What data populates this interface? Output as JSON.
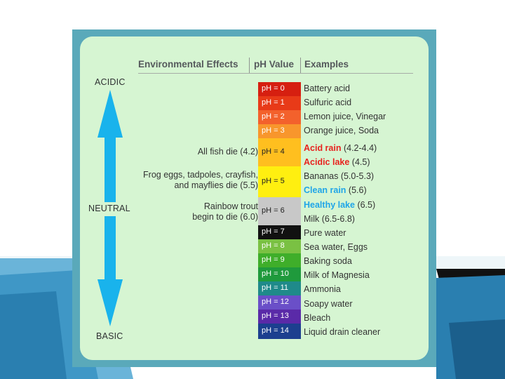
{
  "headers": {
    "effects": "Environmental Effects",
    "ph": "pH Value",
    "examples": "Examples"
  },
  "scale_labels": {
    "acidic": "ACIDIC",
    "neutral": "NEUTRAL",
    "basic": "BASIC"
  },
  "effects": [
    {
      "text": "All fish die (4.2)"
    },
    {
      "line1": "Frog eggs, tadpoles, crayfish,",
      "line2": "and mayflies die (5.5)"
    },
    {
      "line1": "Rainbow trout",
      "line2": "begin to die (6.0)"
    }
  ],
  "ph_scale": [
    {
      "label": "pH = 0",
      "color": "#d61f10",
      "text_color": "#ffffff"
    },
    {
      "label": "pH = 1",
      "color": "#e83a18",
      "text_color": "#ffffff"
    },
    {
      "label": "pH = 2",
      "color": "#f3612c",
      "text_color": "#ffffff"
    },
    {
      "label": "pH = 3",
      "color": "#f8962c",
      "text_color": "#ffffff"
    },
    {
      "label": "pH = 4",
      "color": "#ffbf1f",
      "text_color": "#222222"
    },
    {
      "label": "pH = 5",
      "color": "#ffef10",
      "text_color": "#222222"
    },
    {
      "label": "pH = 6",
      "color": "#c8c8c8",
      "text_color": "#222222"
    },
    {
      "label": "pH = 7",
      "color": "#111111",
      "text_color": "#ffffff"
    },
    {
      "label": "pH = 8",
      "color": "#7ac143",
      "text_color": "#ffffff"
    },
    {
      "label": "pH = 9",
      "color": "#3fae2a",
      "text_color": "#ffffff"
    },
    {
      "label": "pH = 10",
      "color": "#1f9a3c",
      "text_color": "#ffffff"
    },
    {
      "label": "pH = 11",
      "color": "#1f8a8a",
      "text_color": "#ffffff"
    },
    {
      "label": "pH = 12",
      "color": "#6a4fc8",
      "text_color": "#ffffff"
    },
    {
      "label": "pH = 13",
      "color": "#5a2aa8",
      "text_color": "#ffffff"
    },
    {
      "label": "pH = 14",
      "color": "#1c3f8f",
      "text_color": "#ffffff"
    }
  ],
  "examples": [
    {
      "text": "Battery acid"
    },
    {
      "text": "Sulfuric acid"
    },
    {
      "text": "Lemon juice, Vinegar"
    },
    {
      "text": "Orange juice, Soda"
    },
    {
      "hl": "Acid rain",
      "rest": " (4.2-4.4)",
      "hl_color": "#e8231f"
    },
    {
      "hl": "Acidic lake",
      "rest": " (4.5)",
      "hl_color": "#e8231f"
    },
    {
      "text": "Bananas (5.0-5.3)"
    },
    {
      "hl": "Clean rain",
      "rest": " (5.6)",
      "hl_color": "#1fa5e8"
    },
    {
      "hl": "Healthy lake",
      "rest": " (6.5)",
      "hl_color": "#1fa5e8"
    },
    {
      "text": "Milk (6.5-6.8)"
    },
    {
      "text": "Pure water"
    },
    {
      "text": "Sea water, Eggs"
    },
    {
      "text": "Baking soda"
    },
    {
      "text": "Milk of Magnesia"
    },
    {
      "text": "Ammonia"
    },
    {
      "text": "Soapy water"
    },
    {
      "text": "Bleach"
    },
    {
      "text": "Liquid drain cleaner"
    }
  ],
  "colors": {
    "arrow": "#19b3ec",
    "panel": "#d6f5d2",
    "frame": "#5aa9ba"
  }
}
